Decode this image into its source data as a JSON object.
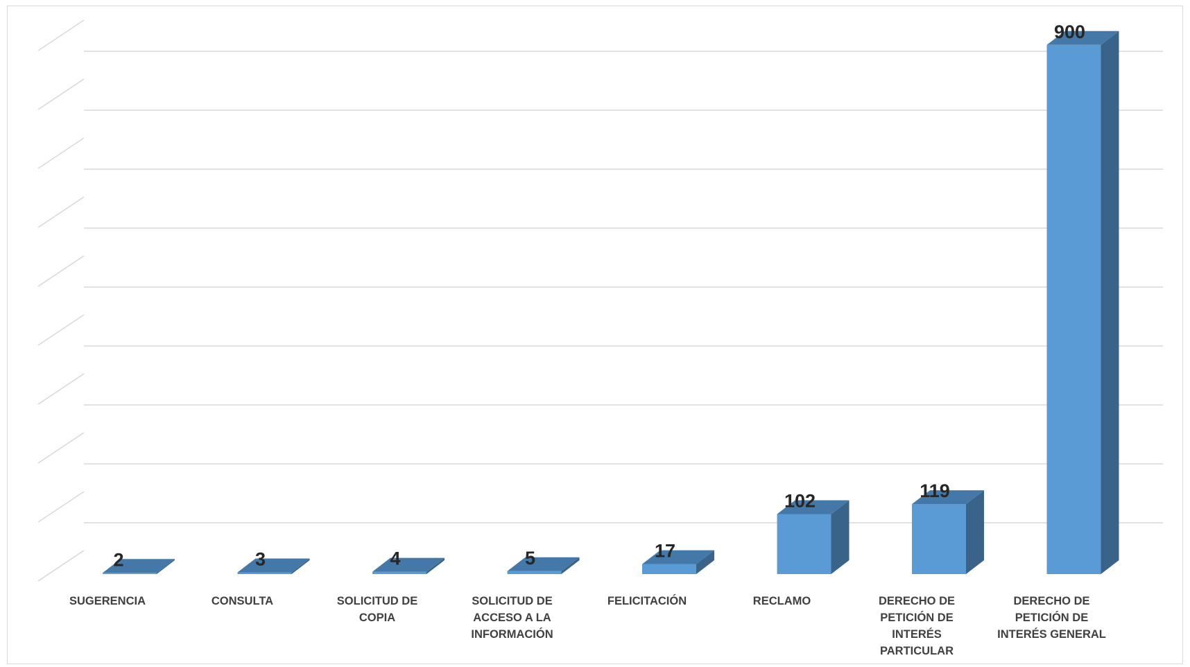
{
  "chart_data": {
    "type": "bar",
    "title": "",
    "xlabel": "",
    "ylabel": "",
    "categories": [
      "SUGERENCIA",
      "CONSULTA",
      "SOLICITUD DE COPIA",
      "SOLICITUD DE ACCESO A LA INFORMACIÓN",
      "FELICITACIÓN",
      "RECLAMO",
      "DERECHO DE PETICIÓN DE INTERÉS PARTICULAR",
      "DERECHO DE PETICIÓN DE INTERÉS GENERAL"
    ],
    "values": [
      2,
      3,
      4,
      5,
      17,
      102,
      119,
      900
    ],
    "ylim": [
      0,
      900
    ],
    "grid": true,
    "legend": "none",
    "style": "3d-column",
    "colors": {
      "bar_front": "#5b9bd5",
      "bar_side": "#3a6389",
      "bar_top": "#4478a8",
      "grid": "#d9d9d9",
      "label": "#404040",
      "value": "#262626"
    }
  }
}
